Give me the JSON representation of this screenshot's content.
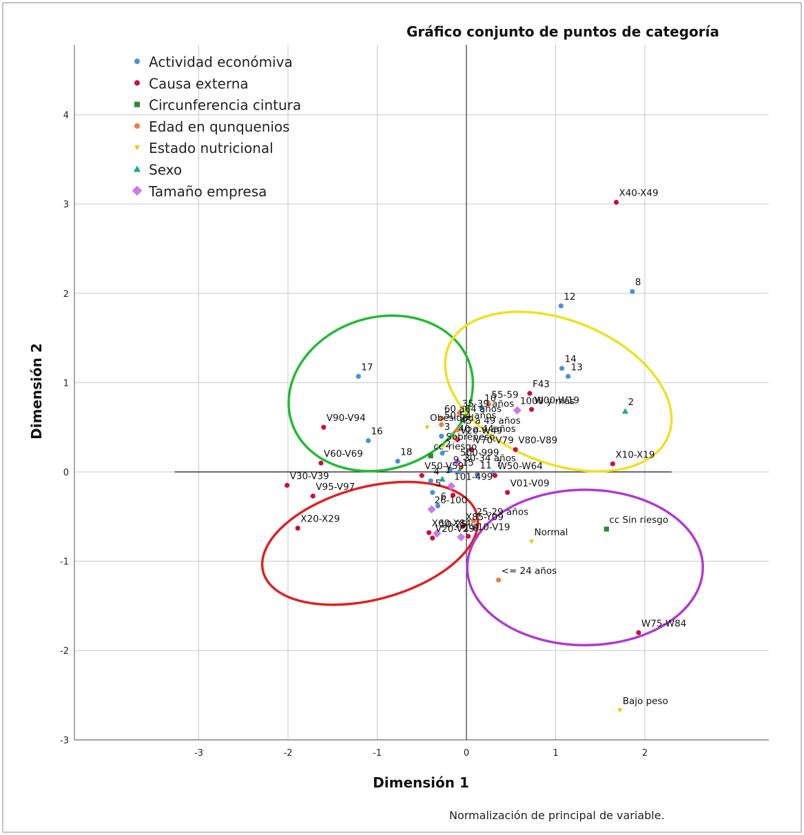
{
  "footnote": "Normalización de principal de variable.",
  "chart_data": {
    "type": "scatter",
    "title": "Gráfico conjunto de puntos de categoría",
    "xlabel": "Dimensión 1",
    "ylabel": "Dimensión 2",
    "xlim": [
      -4.4,
      3.4
    ],
    "ylim": [
      -3.0,
      4.75
    ],
    "xticks": [
      -3,
      -2,
      -1,
      0,
      1,
      2
    ],
    "yticks": [
      -3,
      -2,
      -1,
      0,
      1,
      2,
      3,
      4
    ],
    "grid": true,
    "legend_position": "top-left",
    "reference_lines": {
      "x": 0,
      "y": 0
    },
    "series": [
      {
        "name": "Actividad económiva",
        "color": "#4a90d9",
        "marker": "circle",
        "points": [
          {
            "label": "8",
            "x": 1.86,
            "y": 2.02
          },
          {
            "label": "12",
            "x": 1.06,
            "y": 1.86
          },
          {
            "label": "14",
            "x": 1.07,
            "y": 1.16
          },
          {
            "label": "13",
            "x": 1.14,
            "y": 1.07
          },
          {
            "label": "17",
            "x": -1.21,
            "y": 1.07
          },
          {
            "label": "16",
            "x": -1.1,
            "y": 0.35
          },
          {
            "label": "10",
            "x": 0.17,
            "y": 0.72
          },
          {
            "label": "3",
            "x": -0.28,
            "y": 0.4
          },
          {
            "label": "2",
            "x": -0.27,
            "y": 0.21
          },
          {
            "label": "11",
            "x": 0.12,
            "y": -0.03
          },
          {
            "label": "7",
            "x": 0.3,
            "y": -0.01
          },
          {
            "label": "18",
            "x": -0.77,
            "y": 0.12
          },
          {
            "label": "4",
            "x": -0.4,
            "y": -0.1
          },
          {
            "label": "9",
            "x": -0.18,
            "y": 0.03
          },
          {
            "label": "5",
            "x": -0.38,
            "y": -0.23
          },
          {
            "label": "6",
            "x": -0.32,
            "y": -0.38
          },
          {
            "label": "15",
            "x": -0.08,
            "y": 0.0
          }
        ]
      },
      {
        "name": "Causa externa",
        "color": "#c8123c",
        "marker": "circle",
        "points": [
          {
            "label": "X40-X49",
            "x": 1.68,
            "y": 3.02
          },
          {
            "label": "F43",
            "x": 0.71,
            "y": 0.88
          },
          {
            "label": "W00-W19",
            "x": 0.73,
            "y": 0.7
          },
          {
            "label": "V90-V94",
            "x": -1.6,
            "y": 0.5
          },
          {
            "label": "V60-V69",
            "x": -1.63,
            "y": 0.1
          },
          {
            "label": "X10-X19",
            "x": 1.64,
            "y": 0.09
          },
          {
            "label": "V30-V39",
            "x": -2.01,
            "y": -0.15
          },
          {
            "label": "V95-V97",
            "x": -1.72,
            "y": -0.27
          },
          {
            "label": "X20-X29",
            "x": -1.89,
            "y": -0.63
          },
          {
            "label": "V20-W49",
            "x": -0.1,
            "y": 0.36
          },
          {
            "label": "V70-V79",
            "x": 0.06,
            "y": 0.25
          },
          {
            "label": "V80-V89",
            "x": 0.55,
            "y": 0.25
          },
          {
            "label": "W50-W64",
            "x": 0.32,
            "y": -0.04
          },
          {
            "label": "V50-V59",
            "x": -0.5,
            "y": -0.04
          },
          {
            "label": "V01-V09",
            "x": 0.46,
            "y": -0.23
          },
          {
            "label": "X85-Y09",
            "x": -0.04,
            "y": -0.61
          },
          {
            "label": "X60-X84",
            "x": -0.42,
            "y": -0.68
          },
          {
            "label": "V20-V29",
            "x": -0.38,
            "y": -0.74
          },
          {
            "label": "V10-V19",
            "x": 0.02,
            "y": -0.72
          },
          {
            "label": "W75-W84",
            "x": 1.93,
            "y": -1.8
          },
          {
            "label": "",
            "x": -0.15,
            "y": -0.26
          }
        ]
      },
      {
        "name": "Circunferencia cintura",
        "color": "#2e8b2e",
        "marker": "square",
        "points": [
          {
            "label": "cc_riesgo",
            "x": -0.4,
            "y": 0.18
          },
          {
            "label": "cc Sin riesgo",
            "x": 1.57,
            "y": -0.64
          }
        ]
      },
      {
        "name": "Edad en qunquenios",
        "color": "#f07a45",
        "marker": "circle",
        "points": [
          {
            "label": "35-39 años",
            "x": -0.08,
            "y": 0.66
          },
          {
            "label": "60 a64 años",
            "x": -0.28,
            "y": 0.6
          },
          {
            "label": "50-54 años",
            "x": -0.28,
            "y": 0.53
          },
          {
            "label": "55-59",
            "x": 0.25,
            "y": 0.76
          },
          {
            "label": "45 a 49 años",
            "x": -0.1,
            "y": 0.47
          },
          {
            "label": "40 a 44años",
            "x": -0.12,
            "y": 0.38
          },
          {
            "label": "30-34 años",
            "x": -0.06,
            "y": 0.05
          },
          {
            "label": "25-29 años",
            "x": 0.08,
            "y": -0.55
          },
          {
            "label": "<= 24 años",
            "x": 0.36,
            "y": -1.21
          }
        ]
      },
      {
        "name": "Estado nutricional",
        "color": "#e8c71a",
        "marker": "triangle-down",
        "points": [
          {
            "label": "Obesidad",
            "x": -0.44,
            "y": 0.5
          },
          {
            "label": "Sobrepeso",
            "x": -0.26,
            "y": 0.29
          },
          {
            "label": "Normal",
            "x": 0.73,
            "y": -0.78
          },
          {
            "label": "Bajo peso",
            "x": 1.72,
            "y": -2.67
          }
        ]
      },
      {
        "name": "Sexo",
        "color": "#1fa89a",
        "marker": "triangle-up",
        "points": [
          {
            "label": "2",
            "x": 1.78,
            "y": 0.68
          },
          {
            "label": "1",
            "x": -0.27,
            "y": -0.08
          }
        ]
      },
      {
        "name": "Tamaño empresa",
        "color": "#c77ee0",
        "marker": "diamond",
        "points": [
          {
            "label": "1000 y más",
            "x": 0.57,
            "y": 0.69
          },
          {
            "label": "500-999",
            "x": -0.1,
            "y": 0.11
          },
          {
            "label": "101-499",
            "x": -0.17,
            "y": -0.16
          },
          {
            "label": "26-100",
            "x": -0.39,
            "y": -0.42
          },
          {
            "label": "10-25",
            "x": -0.33,
            "y": -0.69
          },
          {
            "label": "1-9",
            "x": -0.06,
            "y": -0.73
          }
        ]
      }
    ],
    "ellipses": [
      {
        "name": "green",
        "color": "#22bb33",
        "cx": -0.96,
        "cy": 0.88,
        "rx": 1.05,
        "ry": 0.85,
        "angle": -18
      },
      {
        "name": "yellow",
        "color": "#f0e020",
        "cx": 1.03,
        "cy": 0.9,
        "rx": 1.33,
        "ry": 0.8,
        "angle": 22
      },
      {
        "name": "red",
        "color": "#dd2222",
        "cx": -1.08,
        "cy": -0.8,
        "rx": 1.24,
        "ry": 0.63,
        "angle": -15
      },
      {
        "name": "purple",
        "color": "#b03ad0",
        "cx": 1.33,
        "cy": -1.07,
        "rx": 1.32,
        "ry": 0.87,
        "angle": 0
      }
    ]
  }
}
